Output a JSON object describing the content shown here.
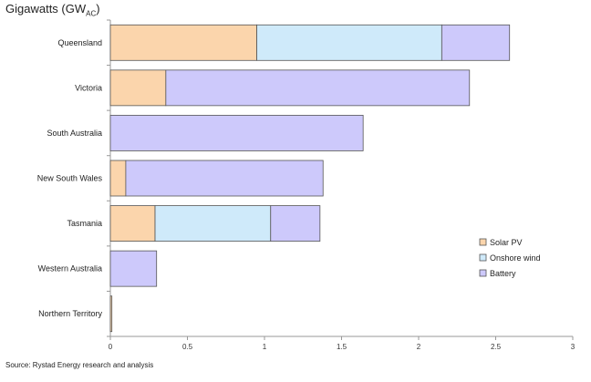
{
  "chart_data": {
    "type": "bar",
    "orientation": "horizontal",
    "stacked": true,
    "ylabel_main": "Gigawatts (GW",
    "ylabel_sub": "AC",
    "ylabel_close": ")",
    "source": "Source: Rystad Energy research and analysis",
    "categories": [
      "Queensland",
      "Victoria",
      "South Australia",
      "New South Wales",
      "Tasmania",
      "Western Australia",
      "Northern Territory"
    ],
    "series": [
      {
        "name": "Solar PV",
        "color": "#fbd5ac",
        "values": [
          0.95,
          0.36,
          0,
          0.1,
          0.29,
          0,
          0.01
        ]
      },
      {
        "name": "Onshore wind",
        "color": "#cfeafa",
        "values": [
          1.2,
          0,
          0,
          0,
          0.75,
          0,
          0
        ]
      },
      {
        "name": "Battery",
        "color": "#cdc9fb",
        "values": [
          0.44,
          1.97,
          1.64,
          1.28,
          0.32,
          0.3,
          0
        ]
      }
    ],
    "xticks": [
      "0",
      "0.5",
      "1",
      "1.5",
      "2",
      "2.5",
      "3"
    ],
    "xlim": [
      0,
      3
    ],
    "legend_position": "right",
    "grid": false
  }
}
